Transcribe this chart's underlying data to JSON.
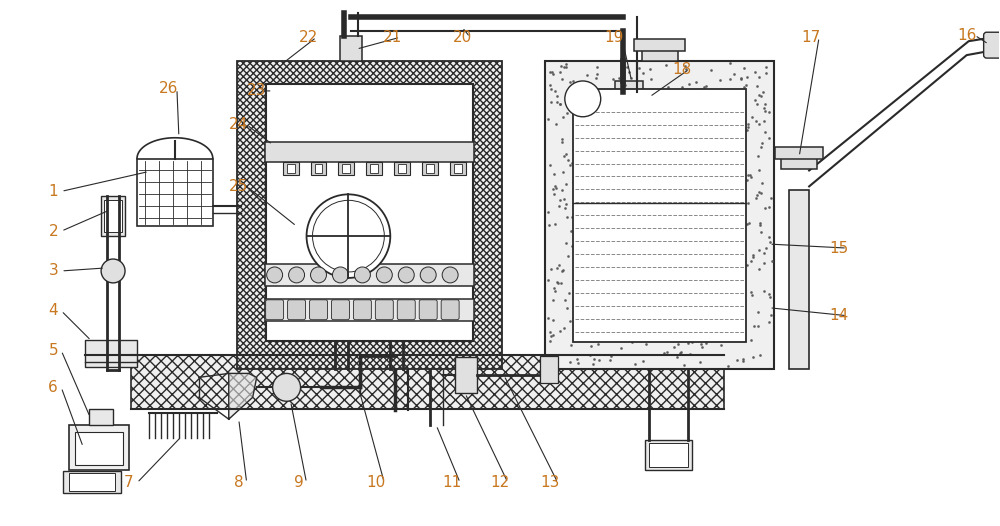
{
  "bg_color": "#ffffff",
  "line_color": "#2a2a2a",
  "label_color": "#c87820",
  "fig_width": 10.0,
  "fig_height": 5.26,
  "label_fs": 11
}
